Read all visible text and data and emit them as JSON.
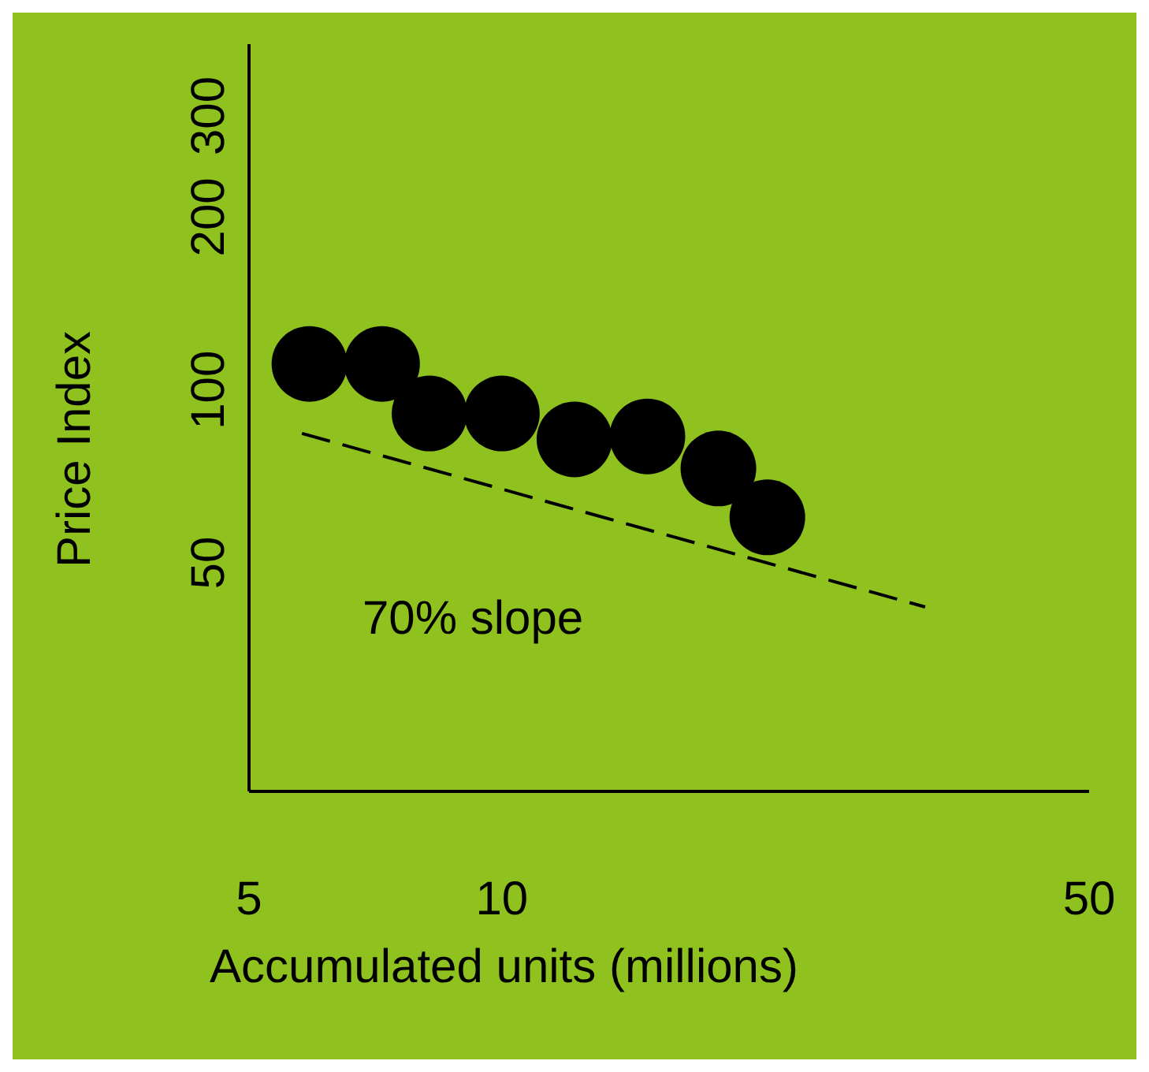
{
  "chart_data": {
    "type": "scatter",
    "xlabel": "Accumulated units (millions)",
    "ylabel": "Price Index",
    "log": "xy",
    "xlim": [
      5,
      50
    ],
    "xticks": [
      5,
      10,
      50
    ],
    "ylim": [
      20,
      400
    ],
    "yticks": [
      50,
      100,
      200,
      300
    ],
    "grid": false,
    "legend": false,
    "annotations": [
      "70% slope"
    ],
    "series": [
      {
        "color": "#000000",
        "marker": "circle",
        "x": [
          5.9,
          7.2,
          8.2,
          10.0,
          12.2,
          14.9,
          18.1,
          20.7
        ],
        "values": [
          111,
          111,
          91,
          91,
          82,
          83,
          73,
          60
        ]
      },
      {
        "type": "line",
        "color": "#000000",
        "line_style": "dashed",
        "marker": "none",
        "x": [
          5.78,
          31.9
        ],
        "values": [
          84,
          41.9
        ]
      }
    ]
  }
}
